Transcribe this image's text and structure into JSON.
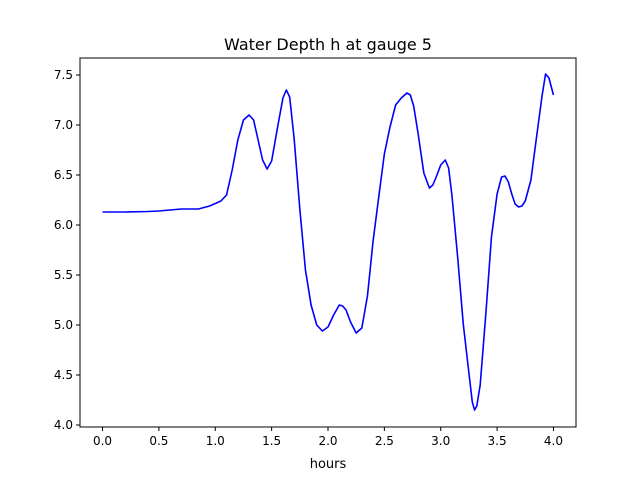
{
  "chart_data": {
    "type": "line",
    "title": "Water Depth h at gauge 5",
    "xlabel": "hours",
    "ylabel": "",
    "xlim": [
      -0.2,
      4.2
    ],
    "ylim": [
      3.98,
      7.67
    ],
    "grid": false,
    "colors": {
      "series": "#0000ff",
      "axes": "#000000"
    },
    "x_ticks": [
      {
        "value": 0.0,
        "label": "0.0"
      },
      {
        "value": 0.5,
        "label": "0.5"
      },
      {
        "value": 1.0,
        "label": "1.0"
      },
      {
        "value": 1.5,
        "label": "1.5"
      },
      {
        "value": 2.0,
        "label": "2.0"
      },
      {
        "value": 2.5,
        "label": "2.5"
      },
      {
        "value": 3.0,
        "label": "3.0"
      },
      {
        "value": 3.5,
        "label": "3.5"
      },
      {
        "value": 4.0,
        "label": "4.0"
      }
    ],
    "y_ticks": [
      {
        "value": 4.0,
        "label": "4.0"
      },
      {
        "value": 4.5,
        "label": "4.5"
      },
      {
        "value": 5.0,
        "label": "5.0"
      },
      {
        "value": 5.5,
        "label": "5.5"
      },
      {
        "value": 6.0,
        "label": "6.0"
      },
      {
        "value": 6.5,
        "label": "6.5"
      },
      {
        "value": 7.0,
        "label": "7.0"
      },
      {
        "value": 7.5,
        "label": "7.5"
      }
    ],
    "series": [
      {
        "x": [
          0.0,
          0.2,
          0.4,
          0.5,
          0.7,
          0.85,
          0.95,
          1.05,
          1.1,
          1.15,
          1.2,
          1.25,
          1.3,
          1.34,
          1.38,
          1.42,
          1.46,
          1.5,
          1.55,
          1.6,
          1.63,
          1.66,
          1.7,
          1.75,
          1.8,
          1.85,
          1.9,
          1.95,
          2.0,
          2.05,
          2.1,
          2.13,
          2.16,
          2.2,
          2.25,
          2.3,
          2.35,
          2.4,
          2.45,
          2.5,
          2.55,
          2.6,
          2.65,
          2.7,
          2.73,
          2.76,
          2.8,
          2.85,
          2.9,
          2.93,
          2.96,
          3.0,
          3.04,
          3.07,
          3.1,
          3.15,
          3.2,
          3.25,
          3.28,
          3.3,
          3.32,
          3.35,
          3.4,
          3.45,
          3.5,
          3.54,
          3.57,
          3.6,
          3.63,
          3.66,
          3.69,
          3.72,
          3.75,
          3.8,
          3.85,
          3.9,
          3.93,
          3.96,
          4.0
        ],
        "values": [
          6.13,
          6.13,
          6.135,
          6.14,
          6.16,
          6.16,
          6.19,
          6.24,
          6.3,
          6.55,
          6.85,
          7.05,
          7.1,
          7.05,
          6.85,
          6.65,
          6.56,
          6.64,
          6.96,
          7.27,
          7.35,
          7.28,
          6.86,
          6.16,
          5.55,
          5.2,
          5.0,
          4.94,
          4.98,
          5.1,
          5.2,
          5.19,
          5.15,
          5.03,
          4.92,
          4.97,
          5.29,
          5.84,
          6.28,
          6.71,
          6.98,
          7.2,
          7.27,
          7.32,
          7.3,
          7.19,
          6.91,
          6.52,
          6.37,
          6.4,
          6.48,
          6.6,
          6.65,
          6.57,
          6.29,
          5.68,
          5.01,
          4.52,
          4.23,
          4.15,
          4.19,
          4.4,
          5.11,
          5.88,
          6.31,
          6.48,
          6.49,
          6.43,
          6.31,
          6.21,
          6.18,
          6.19,
          6.24,
          6.45,
          6.88,
          7.3,
          7.51,
          7.47,
          7.3
        ]
      }
    ]
  }
}
